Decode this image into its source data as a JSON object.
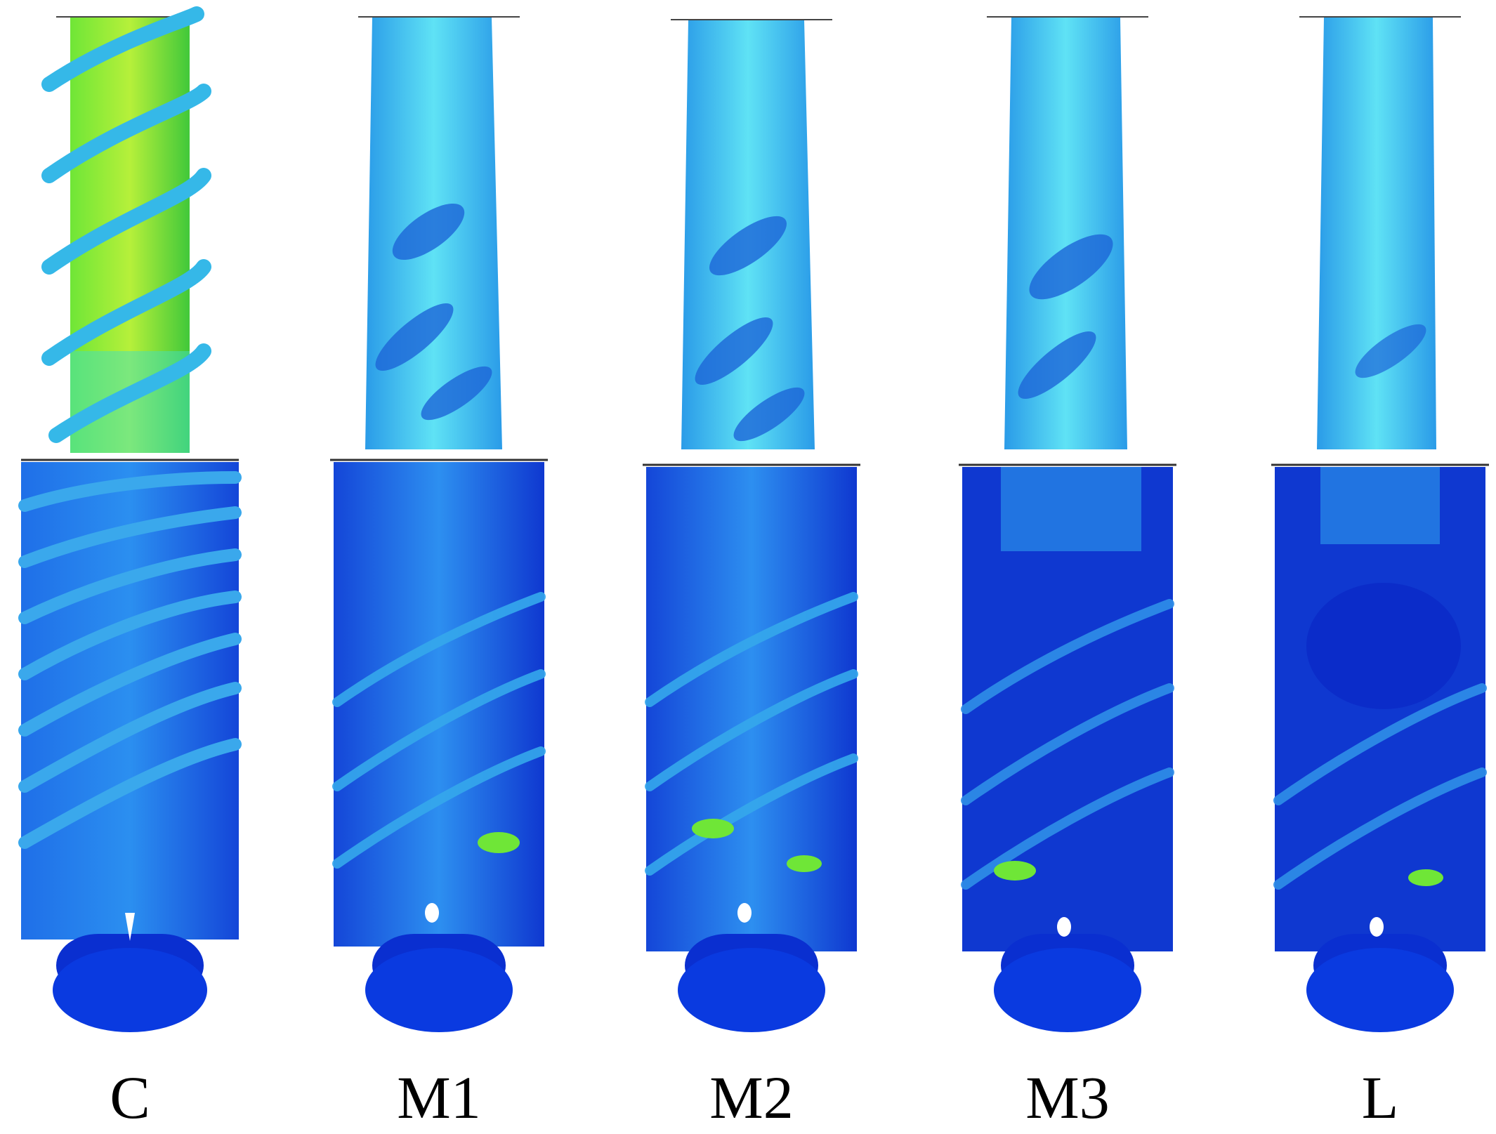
{
  "panels": [
    {
      "label": "C"
    },
    {
      "label": "M1"
    },
    {
      "label": "M2"
    },
    {
      "label": "M3"
    },
    {
      "label": "L"
    }
  ],
  "colors": {
    "background": "#ffffff",
    "deep_blue": "#0a2fd0",
    "mid_blue": "#1f6fe8",
    "cyan": "#35c9f0",
    "light_cyan": "#5fe2f5",
    "green": "#41e84a",
    "yellow_green": "#b6f03a",
    "caption_text": "#000000"
  }
}
